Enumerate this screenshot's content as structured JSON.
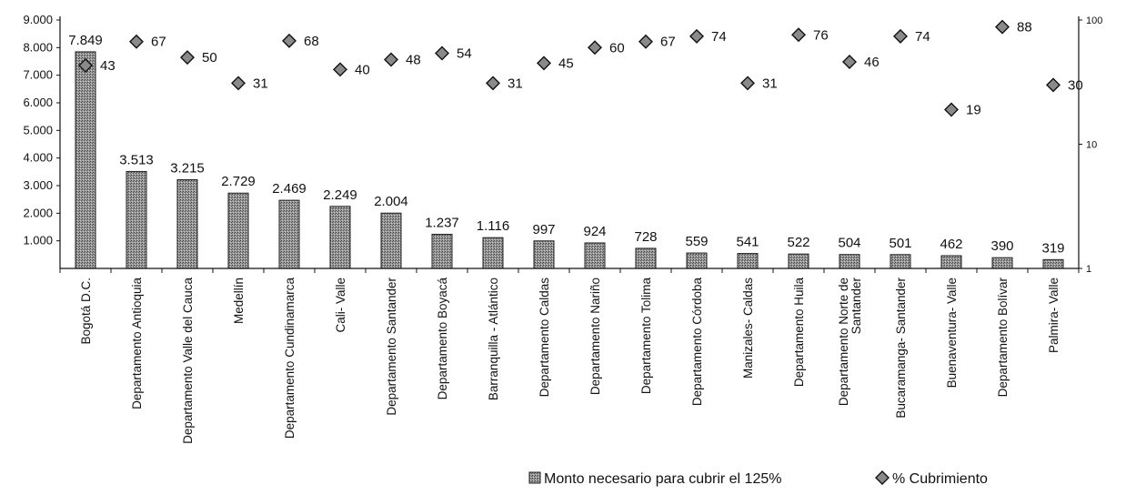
{
  "chart_data": {
    "type": "bar",
    "categories": [
      [
        "Bogotá D.C."
      ],
      [
        "Departamento Antioquia"
      ],
      [
        "Departamento Valle del Cauca"
      ],
      [
        "Medellín"
      ],
      [
        "Departamento Cundinamarca"
      ],
      [
        "Cali- Valle"
      ],
      [
        "Departamento Santander"
      ],
      [
        "Departamento Boyacá"
      ],
      [
        "Barranquilla - Atlántico"
      ],
      [
        "Departamento Caldas"
      ],
      [
        "Departamento Nariño"
      ],
      [
        "Departamento Tolima"
      ],
      [
        "Departamento Córdoba"
      ],
      [
        "Manizales- Caldas"
      ],
      [
        "Departamento Huila"
      ],
      [
        "Departamento Norte de",
        "Santander"
      ],
      [
        "Bucaramanga- Santander"
      ],
      [
        "Buenaventura- Valle"
      ],
      [
        "Departamento Bolívar"
      ],
      [
        "Palmira- Valle"
      ]
    ],
    "series": [
      {
        "name": "Monto necesario para cubrir el 125%",
        "axis": "left",
        "type": "bar",
        "values": [
          7849,
          3513,
          3215,
          2729,
          2469,
          2249,
          2004,
          1237,
          1116,
          997,
          924,
          728,
          559,
          541,
          522,
          504,
          501,
          462,
          390,
          319
        ],
        "labels": [
          "7.849",
          "3.513",
          "3.215",
          "2.729",
          "2.469",
          "2.249",
          "2.004",
          "1.237",
          "1.116",
          "997",
          "924",
          "728",
          "559",
          "541",
          "522",
          "504",
          "501",
          "462",
          "390",
          "319"
        ]
      },
      {
        "name": "% Cubrimiento",
        "axis": "right",
        "type": "scatter",
        "values": [
          43,
          67,
          50,
          31,
          68,
          40,
          48,
          54,
          31,
          45,
          60,
          67,
          74,
          31,
          76,
          46,
          74,
          19,
          88,
          30
        ],
        "labels": [
          "43",
          "67",
          "50",
          "31",
          "68",
          "40",
          "48",
          "54",
          "31",
          "45",
          "60",
          "67",
          "74",
          "31",
          "76",
          "46",
          "74",
          "19",
          "88",
          "30"
        ]
      }
    ],
    "y_left": {
      "ylim": [
        0,
        9000
      ],
      "ticks": [
        1000,
        2000,
        3000,
        4000,
        5000,
        6000,
        7000,
        8000,
        9000
      ],
      "tick_labels": [
        "1.000",
        "2.000",
        "3.000",
        "4.000",
        "5.000",
        "6.000",
        "7.000",
        "8.000",
        "9.000"
      ]
    },
    "y_right": {
      "scale": "log",
      "ylim": [
        1,
        100
      ],
      "ticks": [
        1,
        10,
        100
      ],
      "tick_labels": [
        "1",
        "10",
        "100"
      ]
    },
    "legend": {
      "position": "bottom-right",
      "entries": [
        "Monto necesario para cubrir el 125%",
        "% Cubrimiento"
      ]
    },
    "grid": false,
    "colors": {
      "bar_fill": "#8a8a8a",
      "bar_edge": "#222222",
      "marker_fill": "#8a8a8a",
      "marker_edge": "#111111",
      "axis": "#111111"
    }
  }
}
